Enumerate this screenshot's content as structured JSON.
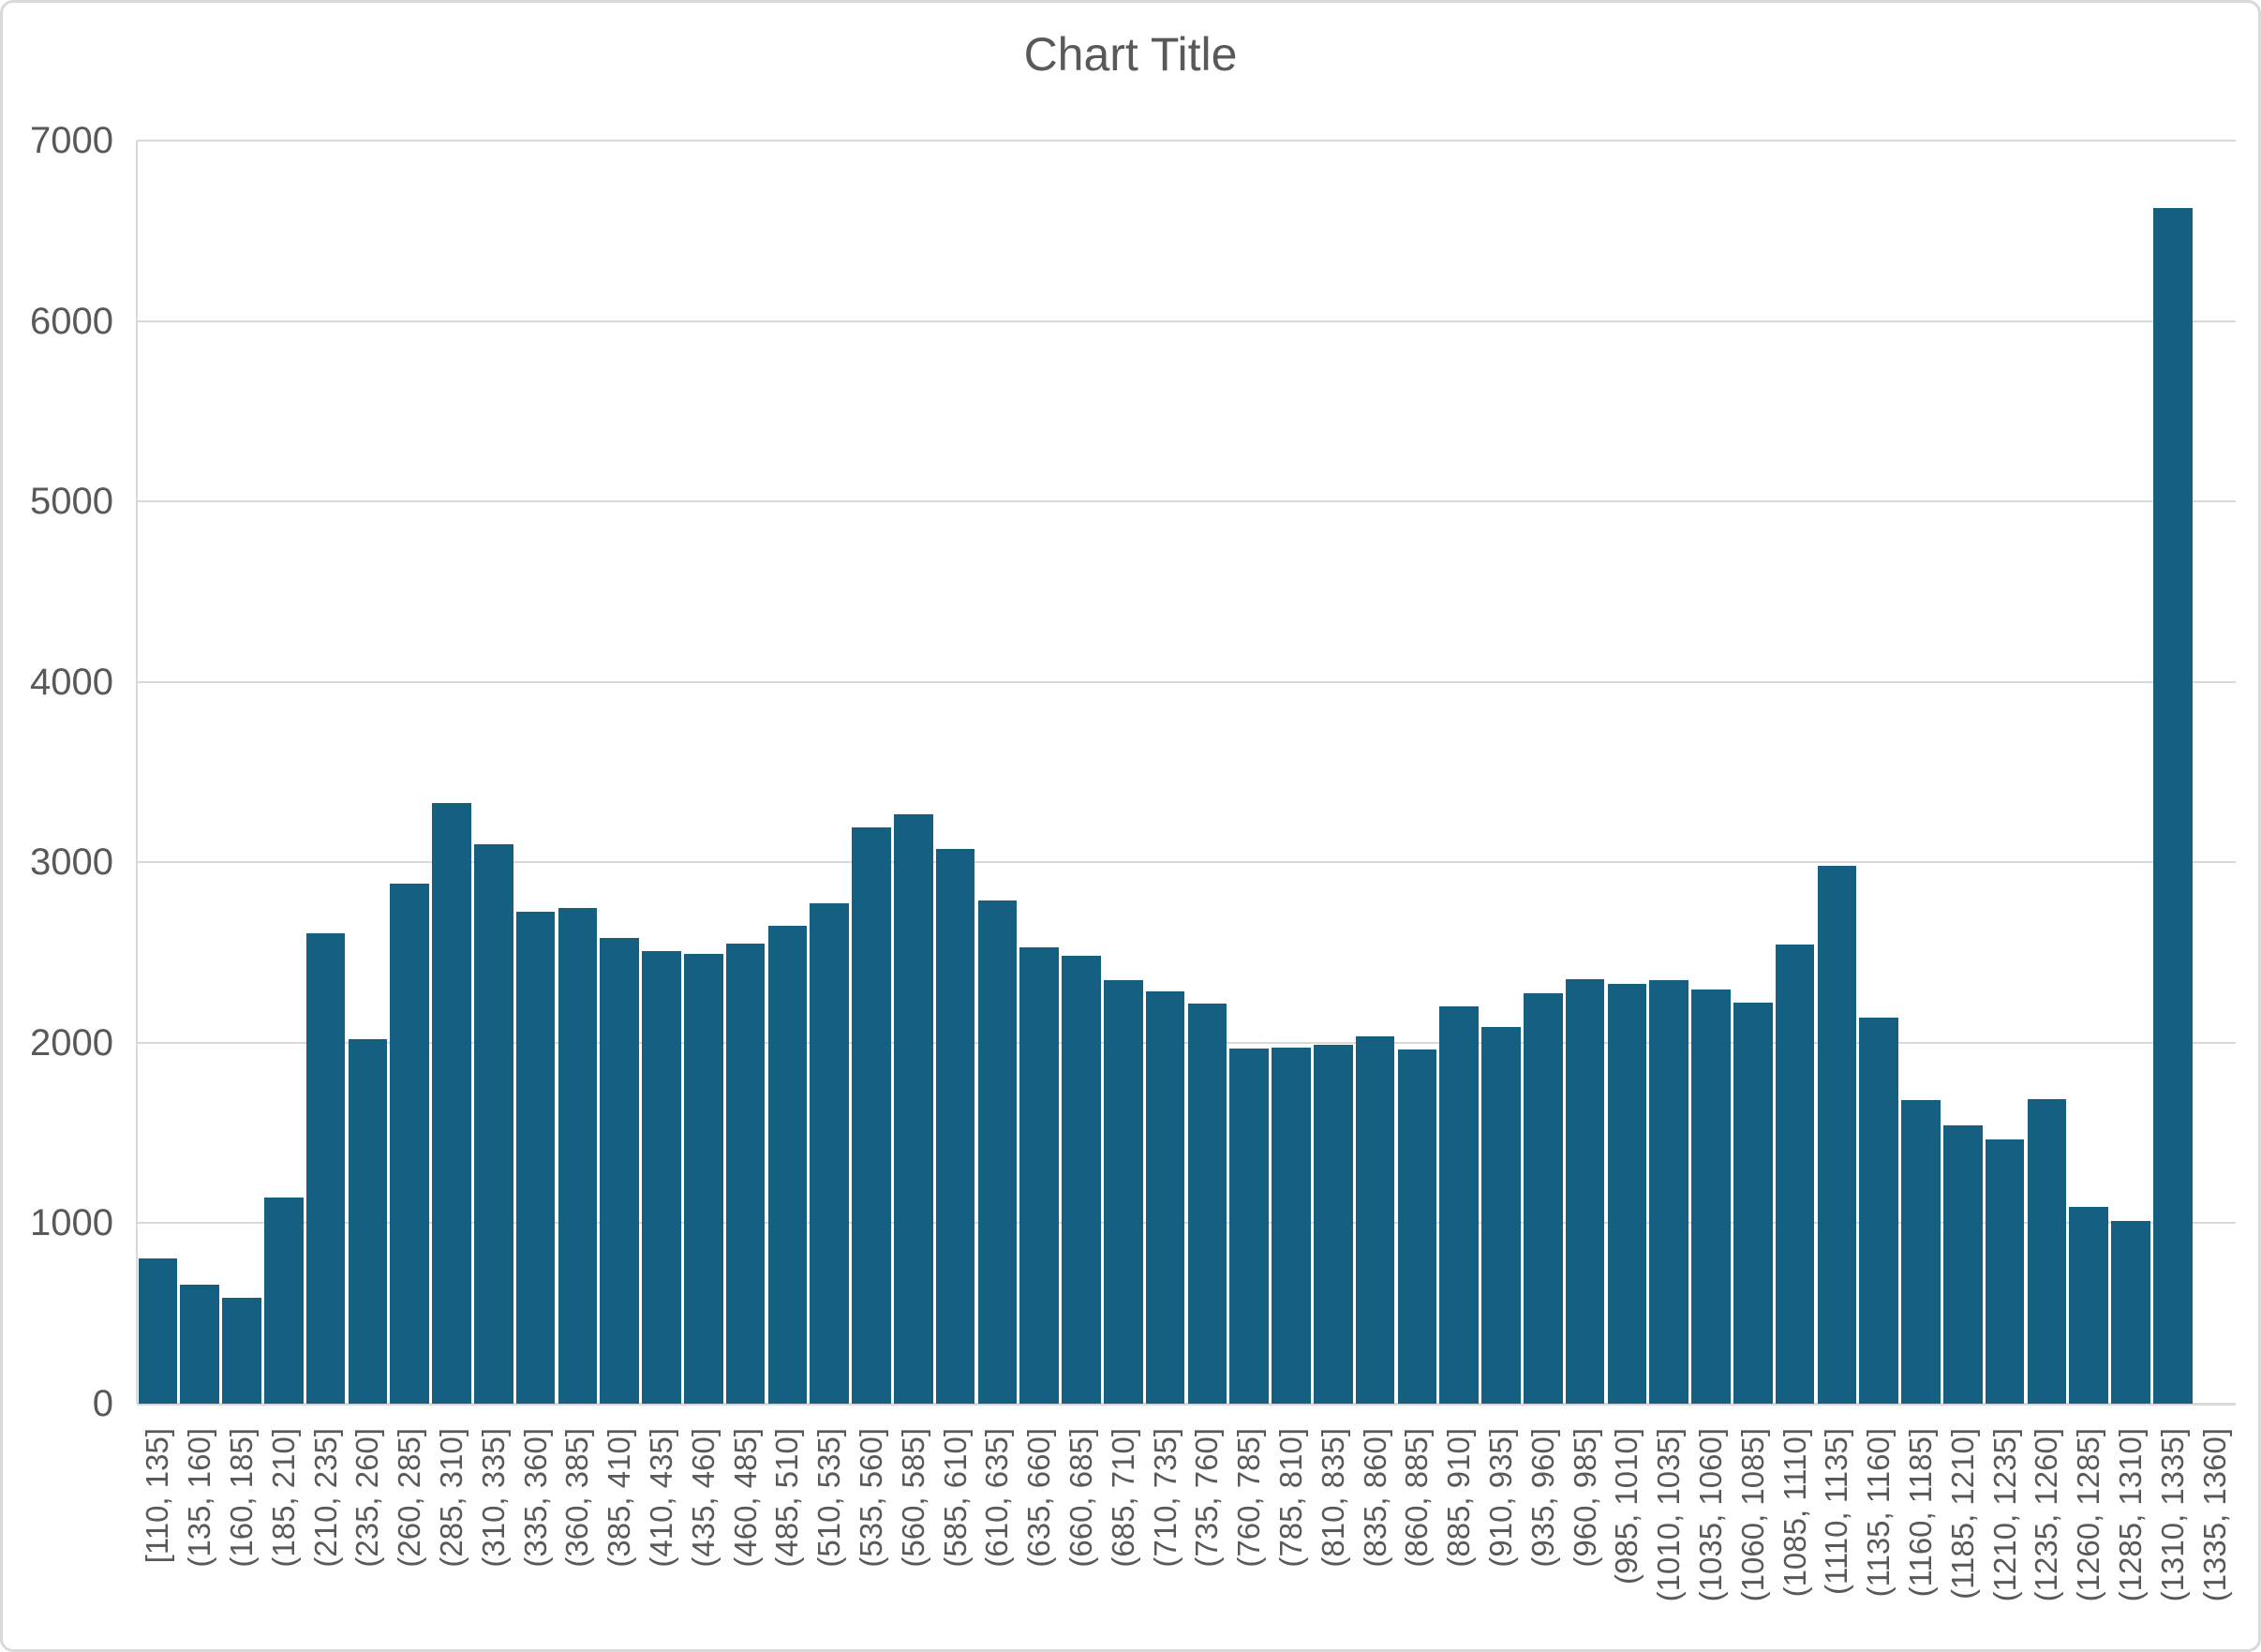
{
  "chart_data": {
    "type": "bar",
    "title": "Chart Title",
    "xlabel": "",
    "ylabel": "",
    "legend_position": "none",
    "grid": "horizontal",
    "ylim": [
      0,
      7000
    ],
    "y_ticks": [
      0,
      1000,
      2000,
      3000,
      4000,
      5000,
      6000,
      7000
    ],
    "y_tick_labels": [
      "0",
      "1000",
      "2000",
      "3000",
      "4000",
      "5000",
      "6000",
      "7000"
    ],
    "categories": [
      "[110, 135]",
      "(135, 160]",
      "(160, 185]",
      "(185, 210]",
      "(210, 235]",
      "(235, 260]",
      "(260, 285]",
      "(285, 310]",
      "(310, 335]",
      "(335, 360]",
      "(360, 385]",
      "(385, 410]",
      "(410, 435]",
      "(435, 460]",
      "(460, 485]",
      "(485, 510]",
      "(510, 535]",
      "(535, 560]",
      "(560, 585]",
      "(585, 610]",
      "(610, 635]",
      "(635, 660]",
      "(660, 685]",
      "(685, 710]",
      "(710, 735]",
      "(735, 760]",
      "(760, 785]",
      "(785, 810]",
      "(810, 835]",
      "(835, 860]",
      "(860, 885]",
      "(885, 910]",
      "(910, 935]",
      "(935, 960]",
      "(960, 985]",
      "(985, 1010]",
      "(1010, 1035]",
      "(1035, 1060]",
      "(1060, 1085]",
      "(1085, 1110]",
      "(1110, 1135]",
      "(1135, 1160]",
      "(1160, 1185]",
      "(1185, 1210]",
      "(1210, 1235]",
      "(1235, 1260]",
      "(1260, 1285]",
      "(1285, 1310]",
      "(1310, 1335]",
      "(1335, 1360]"
    ],
    "values": [
      805,
      660,
      585,
      1140,
      2605,
      2020,
      2880,
      3330,
      3100,
      2725,
      2745,
      2580,
      2510,
      2490,
      2550,
      2650,
      2775,
      3195,
      3265,
      3075,
      2790,
      2530,
      2480,
      2345,
      2285,
      2215,
      1970,
      1975,
      1990,
      2035,
      1965,
      2200,
      2085,
      2275,
      2350,
      2325,
      2345,
      2295,
      2220,
      2545,
      2980,
      2140,
      1685,
      1540,
      1465,
      1690,
      1090,
      1015,
      6625,
      0
    ],
    "bar_color": "#156082",
    "gridline_color": "#D9D9D9",
    "axis_line_color": "#D9D9D9",
    "text_color": "#595959",
    "background_color": "#FFFFFF"
  }
}
